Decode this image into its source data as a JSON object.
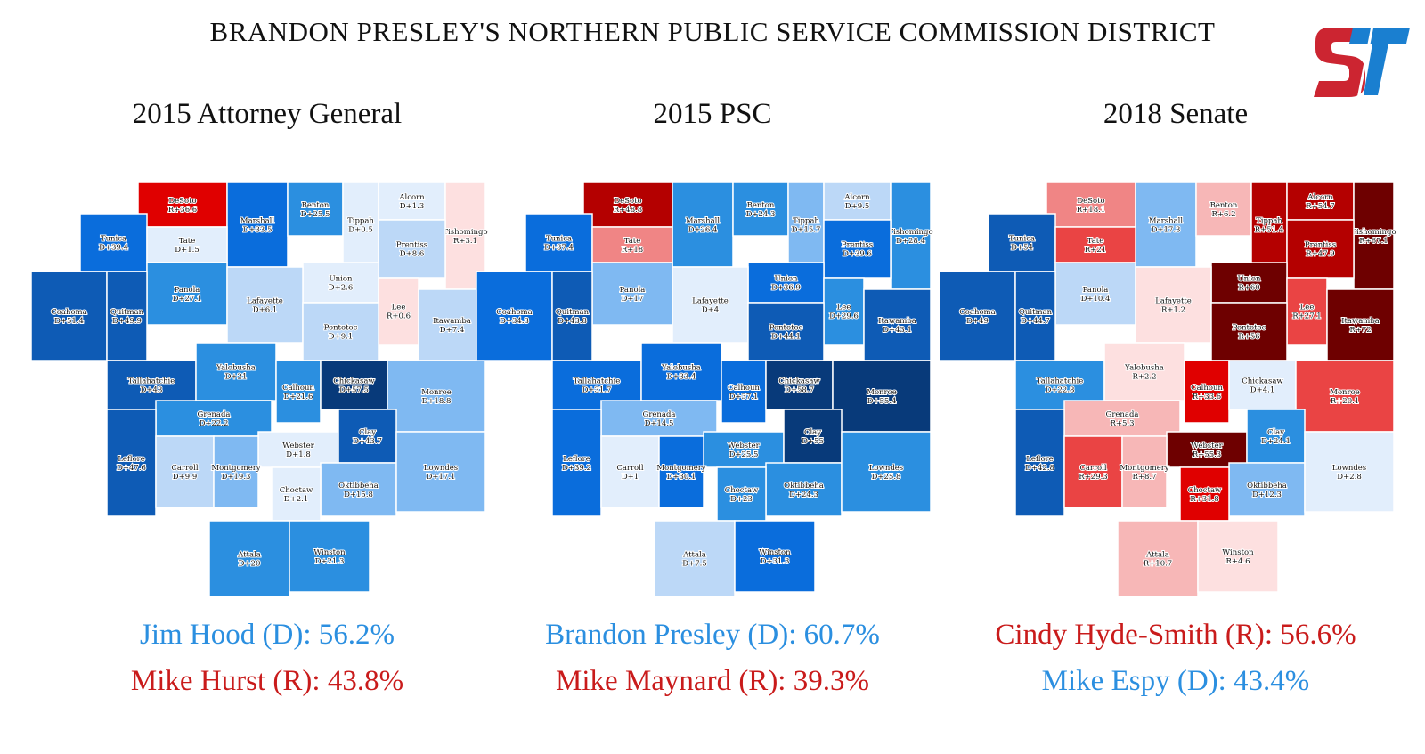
{
  "title": "BRANDON PRESLEY'S NORTHERN PUBLIC SERVICE COMMISSION DISTRICT",
  "logo": {
    "text": "ST",
    "colors": {
      "S": "#cc2531",
      "T": "#1a7fd0"
    }
  },
  "colors": {
    "dem_text": "#2b8fe0",
    "rep_text": "#c91b1b",
    "dem_scale": [
      "#e2eefc",
      "#bcd8f7",
      "#7fb9f2",
      "#2b8fe0",
      "#0a6ddc",
      "#0e5bb5",
      "#083a7a"
    ],
    "rep_scale": [
      "#fde0e0",
      "#f7b7b7",
      "#f08585",
      "#ea4444",
      "#e00000",
      "#b40000",
      "#6e0000"
    ]
  },
  "panels": [
    {
      "heading": "2015 Attorney General",
      "results": [
        {
          "text": "Jim Hood (D): 56.2%",
          "party": "D"
        },
        {
          "text": "Mike Hurst (R): 43.8%",
          "party": "R"
        }
      ],
      "counties": [
        {
          "name": "DeSoto",
          "margin": "R+36.6",
          "party": "R",
          "value": 36.6
        },
        {
          "name": "Marshall",
          "margin": "D+33.5",
          "party": "D",
          "value": 33.5
        },
        {
          "name": "Benton",
          "margin": "D+25.5",
          "party": "D",
          "value": 25.5
        },
        {
          "name": "Tippah",
          "margin": "D+0.5",
          "party": "D",
          "value": 0.5
        },
        {
          "name": "Alcorn",
          "margin": "D+1.3",
          "party": "D",
          "value": 1.3
        },
        {
          "name": "Tishomingo",
          "margin": "R+3.1",
          "party": "R",
          "value": 3.1
        },
        {
          "name": "Tunica",
          "margin": "D+39.4",
          "party": "D",
          "value": 39.4
        },
        {
          "name": "Tate",
          "margin": "D+1.5",
          "party": "D",
          "value": 1.5
        },
        {
          "name": "Prentiss",
          "margin": "D+8.6",
          "party": "D",
          "value": 8.6
        },
        {
          "name": "Union",
          "margin": "D+2.6",
          "party": "D",
          "value": 2.6
        },
        {
          "name": "Panola",
          "margin": "D+27.1",
          "party": "D",
          "value": 27.1
        },
        {
          "name": "Lafayette",
          "margin": "D+6.1",
          "party": "D",
          "value": 6.1
        },
        {
          "name": "Lee",
          "margin": "R+0.6",
          "party": "R",
          "value": 0.6
        },
        {
          "name": "Itawamba",
          "margin": "D+7.4",
          "party": "D",
          "value": 7.4
        },
        {
          "name": "Coahoma",
          "margin": "D+51.4",
          "party": "D",
          "value": 51.4
        },
        {
          "name": "Quitman",
          "margin": "D+49.9",
          "party": "D",
          "value": 49.9
        },
        {
          "name": "Pontotoc",
          "margin": "D+9.1",
          "party": "D",
          "value": 9.1
        },
        {
          "name": "Tallahatchie",
          "margin": "D+43",
          "party": "D",
          "value": 43
        },
        {
          "name": "Yalobusha",
          "margin": "D+21",
          "party": "D",
          "value": 21
        },
        {
          "name": "Calhoun",
          "margin": "D+21.6",
          "party": "D",
          "value": 21.6
        },
        {
          "name": "Chickasaw",
          "margin": "D+57.5",
          "party": "D",
          "value": 57.5
        },
        {
          "name": "Monroe",
          "margin": "D+18.8",
          "party": "D",
          "value": 18.8
        },
        {
          "name": "Grenada",
          "margin": "D+22.2",
          "party": "D",
          "value": 22.2
        },
        {
          "name": "Leflore",
          "margin": "D+47.6",
          "party": "D",
          "value": 47.6
        },
        {
          "name": "Webster",
          "margin": "D+1.8",
          "party": "D",
          "value": 1.8
        },
        {
          "name": "Clay",
          "margin": "D+43.7",
          "party": "D",
          "value": 43.7
        },
        {
          "name": "Carroll",
          "margin": "D+9.9",
          "party": "D",
          "value": 9.9
        },
        {
          "name": "Montgomery",
          "margin": "D+19.3",
          "party": "D",
          "value": 19.3
        },
        {
          "name": "Oktibbeha",
          "margin": "D+15.8",
          "party": "D",
          "value": 15.8
        },
        {
          "name": "Lowndes",
          "margin": "D+17.1",
          "party": "D",
          "value": 17.1
        },
        {
          "name": "Choctaw",
          "margin": "D+2.1",
          "party": "D",
          "value": 2.1
        },
        {
          "name": "Attala",
          "margin": "D+20",
          "party": "D",
          "value": 20
        },
        {
          "name": "Winston",
          "margin": "D+21.3",
          "party": "D",
          "value": 21.3
        }
      ]
    },
    {
      "heading": "2015 PSC",
      "results": [
        {
          "text": "Brandon Presley (D): 60.7%",
          "party": "D"
        },
        {
          "text": "Mike Maynard (R): 39.3%",
          "party": "R"
        }
      ],
      "counties": [
        {
          "name": "DeSoto",
          "margin": "R+48.8",
          "party": "R",
          "value": 48.8
        },
        {
          "name": "Marshall",
          "margin": "D+26.4",
          "party": "D",
          "value": 26.4
        },
        {
          "name": "Benton",
          "margin": "D+24.3",
          "party": "D",
          "value": 24.3
        },
        {
          "name": "Tippah",
          "margin": "D+15.7",
          "party": "D",
          "value": 15.7
        },
        {
          "name": "Alcorn",
          "margin": "D+9.5",
          "party": "D",
          "value": 9.5
        },
        {
          "name": "Tishomingo",
          "margin": "D+28.4",
          "party": "D",
          "value": 28.4
        },
        {
          "name": "Tunica",
          "margin": "D+37.4",
          "party": "D",
          "value": 37.4
        },
        {
          "name": "Tate",
          "margin": "R+18",
          "party": "R",
          "value": 18
        },
        {
          "name": "Prentiss",
          "margin": "D+39.6",
          "party": "D",
          "value": 39.6
        },
        {
          "name": "Union",
          "margin": "D+36.9",
          "party": "D",
          "value": 36.9
        },
        {
          "name": "Panola",
          "margin": "D+17",
          "party": "D",
          "value": 17
        },
        {
          "name": "Lafayette",
          "margin": "D+4",
          "party": "D",
          "value": 4
        },
        {
          "name": "Lee",
          "margin": "D+29.6",
          "party": "D",
          "value": 29.6
        },
        {
          "name": "Itawamba",
          "margin": "D+43.1",
          "party": "D",
          "value": 43.1
        },
        {
          "name": "Coahoma",
          "margin": "D+34.3",
          "party": "D",
          "value": 34.3
        },
        {
          "name": "Quitman",
          "margin": "D+43.8",
          "party": "D",
          "value": 43.8
        },
        {
          "name": "Pontotoc",
          "margin": "D+44.1",
          "party": "D",
          "value": 44.1
        },
        {
          "name": "Tallahatchie",
          "margin": "D+31.7",
          "party": "D",
          "value": 31.7
        },
        {
          "name": "Yalobusha",
          "margin": "D+33.4",
          "party": "D",
          "value": 33.4
        },
        {
          "name": "Calhoun",
          "margin": "D+37.1",
          "party": "D",
          "value": 37.1
        },
        {
          "name": "Chickasaw",
          "margin": "D+58.7",
          "party": "D",
          "value": 58.7
        },
        {
          "name": "Monroe",
          "margin": "D+55.4",
          "party": "D",
          "value": 55.4
        },
        {
          "name": "Grenada",
          "margin": "D+14.5",
          "party": "D",
          "value": 14.5
        },
        {
          "name": "Leflore",
          "margin": "D+39.2",
          "party": "D",
          "value": 39.2
        },
        {
          "name": "Webster",
          "margin": "D+25.5",
          "party": "D",
          "value": 25.5
        },
        {
          "name": "Clay",
          "margin": "D+55",
          "party": "D",
          "value": 55
        },
        {
          "name": "Carroll",
          "margin": "D+1",
          "party": "D",
          "value": 1
        },
        {
          "name": "Montgomery",
          "margin": "D+30.1",
          "party": "D",
          "value": 30.1
        },
        {
          "name": "Oktibbeha",
          "margin": "D+24.3",
          "party": "D",
          "value": 24.3
        },
        {
          "name": "Lowndes",
          "margin": "D+25.8",
          "party": "D",
          "value": 25.8
        },
        {
          "name": "Choctaw",
          "margin": "D+23",
          "party": "D",
          "value": 23
        },
        {
          "name": "Attala",
          "margin": "D+7.5",
          "party": "D",
          "value": 7.5
        },
        {
          "name": "Winston",
          "margin": "D+31.3",
          "party": "D",
          "value": 31.3
        }
      ]
    },
    {
      "heading": "2018 Senate",
      "results": [
        {
          "text": "Cindy Hyde-Smith (R): 56.6%",
          "party": "R"
        },
        {
          "text": "Mike Espy (D): 43.4%",
          "party": "D"
        }
      ],
      "counties": [
        {
          "name": "DeSoto",
          "margin": "R+18.1",
          "party": "R",
          "value": 18.1
        },
        {
          "name": "Marshall",
          "margin": "D+17.3",
          "party": "D",
          "value": 17.3
        },
        {
          "name": "Benton",
          "margin": "R+6.2",
          "party": "R",
          "value": 6.2
        },
        {
          "name": "Tippah",
          "margin": "R+51.4",
          "party": "R",
          "value": 51.4
        },
        {
          "name": "Alcorn",
          "margin": "R+54.7",
          "party": "R",
          "value": 54.7
        },
        {
          "name": "Tishomingo",
          "margin": "R+67.1",
          "party": "R",
          "value": 67.1
        },
        {
          "name": "Tunica",
          "margin": "D+54",
          "party": "D",
          "value": 54
        },
        {
          "name": "Tate",
          "margin": "R+21",
          "party": "R",
          "value": 21
        },
        {
          "name": "Prentiss",
          "margin": "R+47.9",
          "party": "R",
          "value": 47.9
        },
        {
          "name": "Union",
          "margin": "R+60",
          "party": "R",
          "value": 60
        },
        {
          "name": "Panola",
          "margin": "D+10.4",
          "party": "D",
          "value": 10.4
        },
        {
          "name": "Lafayette",
          "margin": "R+1.2",
          "party": "R",
          "value": 1.2
        },
        {
          "name": "Lee",
          "margin": "R+27.1",
          "party": "R",
          "value": 27.1
        },
        {
          "name": "Itawamba",
          "margin": "R+72",
          "party": "R",
          "value": 72
        },
        {
          "name": "Coahoma",
          "margin": "D+49",
          "party": "D",
          "value": 49
        },
        {
          "name": "Quitman",
          "margin": "D+44.7",
          "party": "D",
          "value": 44.7
        },
        {
          "name": "Pontotoc",
          "margin": "R+56",
          "party": "R",
          "value": 56
        },
        {
          "name": "Tallahatchie",
          "margin": "D+22.8",
          "party": "D",
          "value": 22.8
        },
        {
          "name": "Yalobusha",
          "margin": "R+2.2",
          "party": "R",
          "value": 2.2
        },
        {
          "name": "Calhoun",
          "margin": "R+33.6",
          "party": "R",
          "value": 33.6
        },
        {
          "name": "Chickasaw",
          "margin": "D+4.1",
          "party": "D",
          "value": 4.1
        },
        {
          "name": "Monroe",
          "margin": "R+20.1",
          "party": "R",
          "value": 20.1
        },
        {
          "name": "Grenada",
          "margin": "R+5.3",
          "party": "R",
          "value": 5.3
        },
        {
          "name": "Leflore",
          "margin": "D+42.8",
          "party": "D",
          "value": 42.8
        },
        {
          "name": "Webster",
          "margin": "R+55.3",
          "party": "R",
          "value": 55.3
        },
        {
          "name": "Clay",
          "margin": "D+24.1",
          "party": "D",
          "value": 24.1
        },
        {
          "name": "Carroll",
          "margin": "R+29.3",
          "party": "R",
          "value": 29.3
        },
        {
          "name": "Montgomery",
          "margin": "R+8.7",
          "party": "R",
          "value": 8.7
        },
        {
          "name": "Oktibbeha",
          "margin": "D+12.3",
          "party": "D",
          "value": 12.3
        },
        {
          "name": "Lowndes",
          "margin": "D+2.8",
          "party": "D",
          "value": 2.8
        },
        {
          "name": "Choctaw",
          "margin": "R+31.8",
          "party": "R",
          "value": 31.8
        },
        {
          "name": "Attala",
          "margin": "R+10.7",
          "party": "R",
          "value": 10.7
        },
        {
          "name": "Winston",
          "margin": "R+4.6",
          "party": "R",
          "value": 4.6
        }
      ]
    }
  ]
}
